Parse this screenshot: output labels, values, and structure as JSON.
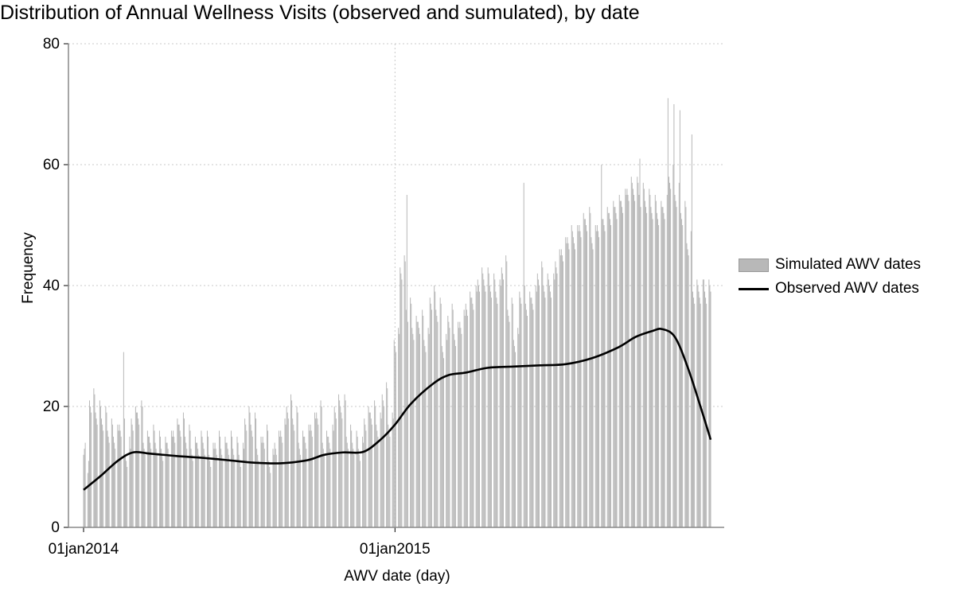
{
  "chart_data": {
    "type": "bar",
    "title": "Distribution of Annual Wellness Visits (observed and sumulated), by date",
    "xlabel": "AWV date (day)",
    "ylabel": "Frequency",
    "xlim": [
      "2014-01-01",
      "2016-01-06"
    ],
    "ylim": [
      0,
      80
    ],
    "y_ticks": [
      0,
      20,
      40,
      60,
      80
    ],
    "x_ticks": [
      {
        "value": "2014-01-01",
        "label": "01jan2014"
      },
      {
        "value": "2015-01-01",
        "label": "01jan2015"
      }
    ],
    "grid": "dotted",
    "legend_position": "right",
    "series": [
      {
        "name": "Simulated AWV dates",
        "kind": "bar",
        "color": "#b8b8b8",
        "start": "2014-01-01",
        "end": "2016-01-06",
        "weekday_values": [
          [
            9,
            23,
            21,
            20,
            18,
            17,
            29,
            15,
            20,
            21,
            16,
            17,
            16,
            15,
            16,
            18,
            19,
            17,
            15,
            16,
            16,
            14,
            16,
            15,
            16,
            15,
            14,
            20,
            19,
            15,
            17,
            13,
            16,
            18,
            22,
            20,
            16,
            17,
            19,
            21,
            16,
            17,
            22,
            22,
            17,
            16,
            15,
            20,
            21,
            19,
            24,
            19,
            33,
            45,
            38,
            35,
            36,
            33,
            40,
            38,
            32,
            37,
            34,
            36,
            39,
            40,
            43,
            43,
            42,
            41,
            45,
            38,
            33,
            41,
            39,
            40,
            44,
            42,
            42,
            46,
            48,
            50,
            50,
            52,
            53,
            50,
            52,
            53,
            54,
            55,
            56,
            58,
            58,
            57,
            56,
            55,
            54,
            55,
            60,
            57,
            54,
            49,
            41
          ],
          [
            11,
            22,
            20,
            19,
            17,
            16,
            18,
            13,
            19,
            20,
            15,
            16,
            15,
            14,
            15,
            17,
            18,
            16,
            14,
            15,
            15,
            13,
            15,
            14,
            15,
            14,
            13,
            19,
            18,
            14,
            16,
            12,
            15,
            17,
            21,
            19,
            15,
            16,
            18,
            20,
            15,
            16,
            21,
            21,
            16,
            15,
            14,
            19,
            20,
            18,
            23,
            18,
            32,
            44,
            37,
            34,
            35,
            32,
            39,
            37,
            31,
            36,
            33,
            35,
            38,
            39,
            42,
            42,
            41,
            40,
            44,
            37,
            32,
            40,
            38,
            39,
            43,
            41,
            41,
            45,
            47,
            49,
            49,
            51,
            52,
            49,
            51,
            52,
            53,
            54,
            55,
            57,
            57,
            56,
            55,
            54,
            53,
            54,
            59,
            56,
            53,
            48,
            40
          ],
          [
            12,
            21,
            19,
            18,
            16,
            15,
            17,
            12,
            18,
            19,
            14,
            15,
            14,
            13,
            14,
            16,
            17,
            15,
            13,
            14,
            14,
            12,
            14,
            13,
            14,
            13,
            12,
            18,
            17,
            13,
            15,
            11,
            14,
            16,
            20,
            18,
            14,
            15,
            17,
            19,
            14,
            15,
            20,
            20,
            15,
            14,
            13,
            18,
            19,
            17,
            22,
            17,
            31,
            43,
            36,
            33,
            34,
            31,
            38,
            36,
            30,
            35,
            32,
            34,
            37,
            38,
            41,
            41,
            40,
            39,
            43,
            36,
            31,
            39,
            37,
            38,
            42,
            40,
            40,
            44,
            46,
            48,
            48,
            50,
            51,
            48,
            50,
            51,
            52,
            53,
            54,
            56,
            56,
            55,
            54,
            53,
            52,
            53,
            58,
            55,
            52,
            47,
            39
          ],
          [
            13,
            20,
            18,
            17,
            15,
            14,
            16,
            11,
            17,
            18,
            13,
            14,
            13,
            12,
            13,
            15,
            16,
            14,
            12,
            13,
            13,
            11,
            13,
            12,
            13,
            12,
            11,
            17,
            16,
            12,
            14,
            10,
            13,
            15,
            19,
            17,
            13,
            14,
            16,
            18,
            13,
            14,
            19,
            19,
            14,
            13,
            12,
            17,
            18,
            16,
            21,
            16,
            30,
            42,
            35,
            32,
            33,
            30,
            37,
            35,
            29,
            34,
            31,
            33,
            36,
            37,
            40,
            40,
            39,
            38,
            42,
            35,
            30,
            38,
            36,
            37,
            41,
            39,
            39,
            43,
            45,
            47,
            47,
            49,
            50,
            47,
            49,
            50,
            51,
            52,
            53,
            55,
            55,
            54,
            53,
            52,
            51,
            52,
            57,
            54,
            51,
            46,
            38
          ],
          [
            14,
            19,
            17,
            16,
            14,
            13,
            15,
            10,
            16,
            17,
            12,
            13,
            12,
            11,
            12,
            14,
            15,
            13,
            11,
            12,
            12,
            10,
            12,
            11,
            12,
            11,
            10,
            16,
            15,
            11,
            13,
            9,
            12,
            14,
            18,
            16,
            12,
            13,
            15,
            17,
            12,
            13,
            18,
            18,
            13,
            12,
            11,
            16,
            17,
            15,
            20,
            15,
            29,
            41,
            34,
            31,
            32,
            29,
            36,
            34,
            28,
            33,
            30,
            32,
            35,
            36,
            39,
            39,
            38,
            37,
            41,
            34,
            29,
            37,
            35,
            36,
            40,
            38,
            38,
            42,
            44,
            46,
            46,
            48,
            49,
            46,
            48,
            49,
            50,
            51,
            52,
            54,
            54,
            53,
            52,
            51,
            50,
            51,
            56,
            53,
            50,
            45,
            37
          ]
        ],
        "peaks": [
          {
            "date": "2015-01-15",
            "value": 55
          },
          {
            "date": "2015-06-01",
            "value": 57
          },
          {
            "date": "2015-08-01",
            "value": 59
          },
          {
            "date": "2015-08-31",
            "value": 60
          },
          {
            "date": "2015-10-15",
            "value": 61
          },
          {
            "date": "2015-11-15",
            "value": 69
          },
          {
            "date": "2015-11-17",
            "value": 71
          },
          {
            "date": "2015-11-24",
            "value": 70
          },
          {
            "date": "2015-12-01",
            "value": 69
          },
          {
            "date": "2015-12-15",
            "value": 65
          },
          {
            "date": "2015-12-29",
            "value": 41
          }
        ]
      },
      {
        "name": "Observed AWV dates",
        "kind": "line",
        "color": "#000000",
        "points": [
          {
            "x": "2014-01-01",
            "y": 6.2
          },
          {
            "x": "2014-01-21",
            "y": 8.5
          },
          {
            "x": "2014-02-10",
            "y": 11.0
          },
          {
            "x": "2014-02-28",
            "y": 12.4
          },
          {
            "x": "2014-03-20",
            "y": 12.2
          },
          {
            "x": "2014-04-20",
            "y": 11.8
          },
          {
            "x": "2014-05-20",
            "y": 11.5
          },
          {
            "x": "2014-06-20",
            "y": 11.1
          },
          {
            "x": "2014-07-20",
            "y": 10.7
          },
          {
            "x": "2014-08-20",
            "y": 10.6
          },
          {
            "x": "2014-09-20",
            "y": 11.1
          },
          {
            "x": "2014-10-10",
            "y": 12.0
          },
          {
            "x": "2014-11-01",
            "y": 12.4
          },
          {
            "x": "2014-11-25",
            "y": 12.5
          },
          {
            "x": "2014-12-15",
            "y": 14.5
          },
          {
            "x": "2015-01-01",
            "y": 17.0
          },
          {
            "x": "2015-01-20",
            "y": 20.5
          },
          {
            "x": "2015-02-15",
            "y": 23.8
          },
          {
            "x": "2015-03-05",
            "y": 25.2
          },
          {
            "x": "2015-03-25",
            "y": 25.6
          },
          {
            "x": "2015-04-20",
            "y": 26.4
          },
          {
            "x": "2015-05-20",
            "y": 26.6
          },
          {
            "x": "2015-06-20",
            "y": 26.8
          },
          {
            "x": "2015-07-20",
            "y": 27.0
          },
          {
            "x": "2015-08-20",
            "y": 28.0
          },
          {
            "x": "2015-09-20",
            "y": 29.8
          },
          {
            "x": "2015-10-10",
            "y": 31.5
          },
          {
            "x": "2015-10-30",
            "y": 32.5
          },
          {
            "x": "2015-11-10",
            "y": 32.8
          },
          {
            "x": "2015-11-25",
            "y": 31.5
          },
          {
            "x": "2015-12-10",
            "y": 26.5
          },
          {
            "x": "2015-12-25",
            "y": 20.0
          },
          {
            "x": "2016-01-06",
            "y": 14.5
          }
        ]
      }
    ]
  },
  "legend": {
    "simulated": "Simulated AWV dates",
    "observed": "Observed AWV dates"
  }
}
